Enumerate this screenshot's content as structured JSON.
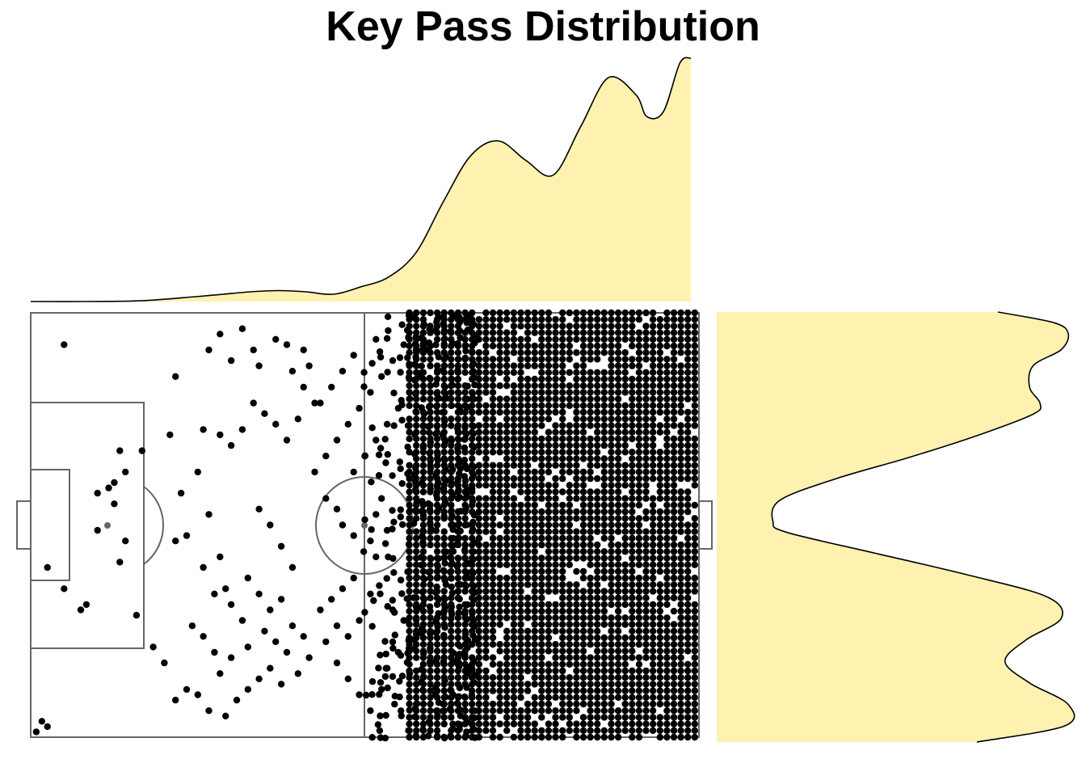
{
  "title": "Key Pass Distribution",
  "colors": {
    "density_fill": "#FFF2B0",
    "density_line": "#000000",
    "pitch_line": "#666666",
    "point": "#000000"
  },
  "chart_data": {
    "type": "scatter",
    "title": "Key Pass Distribution",
    "xlabel": "",
    "ylabel": "",
    "xlim": [
      0,
      120
    ],
    "ylim": [
      0,
      80
    ],
    "axes_visible": false,
    "grid": false,
    "legend": "none",
    "background": "football pitch (half-pitch markings, centre circle, penalty box, goal)",
    "marginal_x_density": {
      "x": [
        0,
        10,
        20,
        30,
        35,
        40,
        45,
        50,
        55,
        60,
        65,
        70,
        75,
        80,
        85,
        90,
        95,
        100,
        105,
        110,
        112,
        115,
        118,
        120
      ],
      "density": [
        0.0,
        0.0,
        0.003,
        0.02,
        0.03,
        0.04,
        0.045,
        0.04,
        0.03,
        0.06,
        0.1,
        0.2,
        0.41,
        0.6,
        0.66,
        0.58,
        0.52,
        0.72,
        0.92,
        0.85,
        0.76,
        0.78,
        0.98,
        1.0
      ]
    },
    "marginal_y_density": {
      "y": [
        0,
        3,
        7,
        11,
        15,
        19,
        23,
        27,
        31,
        35,
        39,
        41,
        45,
        49,
        53,
        57,
        61,
        63,
        66,
        70,
        73,
        76,
        78,
        80
      ],
      "density": [
        0.74,
        0.99,
        1.0,
        0.89,
        0.82,
        0.88,
        0.98,
        0.94,
        0.72,
        0.46,
        0.2,
        0.16,
        0.18,
        0.34,
        0.55,
        0.74,
        0.9,
        0.92,
        0.89,
        0.9,
        0.98,
        1.0,
        0.96,
        0.8
      ]
    },
    "points": {
      "description": "key pass origin locations",
      "sparse": [
        [
          6,
          74
        ],
        [
          26,
          68
        ],
        [
          25,
          57
        ],
        [
          16,
          54
        ],
        [
          20,
          54
        ],
        [
          17,
          50
        ],
        [
          15,
          48
        ],
        [
          14,
          47
        ],
        [
          12,
          46
        ],
        [
          15,
          44
        ],
        [
          12,
          39
        ],
        [
          16,
          33
        ],
        [
          17,
          37
        ],
        [
          10,
          25
        ],
        [
          3,
          32
        ],
        [
          6,
          28
        ],
        [
          9,
          24
        ],
        [
          1,
          1
        ],
        [
          2,
          3
        ],
        [
          3,
          2
        ],
        [
          32,
          73
        ],
        [
          34,
          76
        ],
        [
          36,
          71
        ],
        [
          38,
          77
        ],
        [
          40,
          73
        ],
        [
          41,
          70
        ],
        [
          44,
          75
        ],
        [
          46,
          74
        ],
        [
          47,
          69
        ],
        [
          49,
          73
        ],
        [
          50,
          70
        ],
        [
          51,
          63
        ],
        [
          49,
          66
        ],
        [
          48,
          60
        ],
        [
          46,
          56
        ],
        [
          44,
          59
        ],
        [
          42,
          61
        ],
        [
          40,
          63
        ],
        [
          38,
          58
        ],
        [
          36,
          55
        ],
        [
          34,
          57
        ],
        [
          31,
          58
        ],
        [
          30,
          50
        ],
        [
          27,
          46
        ],
        [
          26,
          37
        ],
        [
          28,
          38
        ],
        [
          31,
          32
        ],
        [
          32,
          42
        ],
        [
          34,
          34
        ],
        [
          35,
          28
        ],
        [
          33,
          27
        ],
        [
          36,
          25
        ],
        [
          38,
          22
        ],
        [
          39,
          30
        ],
        [
          41,
          27
        ],
        [
          43,
          24
        ],
        [
          45,
          26
        ],
        [
          47,
          21
        ],
        [
          49,
          19
        ],
        [
          50,
          15
        ],
        [
          48,
          12
        ],
        [
          45,
          10
        ],
        [
          43,
          13
        ],
        [
          41,
          11
        ],
        [
          39,
          9
        ],
        [
          37,
          7
        ],
        [
          35,
          4
        ],
        [
          32,
          5
        ],
        [
          30,
          8
        ],
        [
          28,
          9
        ],
        [
          26,
          7
        ],
        [
          24,
          14
        ],
        [
          22,
          17
        ],
        [
          19,
          23
        ],
        [
          29,
          21
        ],
        [
          31,
          19
        ],
        [
          33,
          16
        ],
        [
          34,
          12
        ],
        [
          36,
          15
        ],
        [
          39,
          17
        ],
        [
          42,
          20
        ],
        [
          44,
          18
        ],
        [
          46,
          16
        ],
        [
          47,
          32
        ],
        [
          45,
          36
        ],
        [
          43,
          40
        ],
        [
          41,
          43
        ],
        [
          53,
          45
        ],
        [
          55,
          43
        ],
        [
          56,
          40
        ],
        [
          58,
          38
        ],
        [
          60,
          41
        ],
        [
          61,
          37
        ],
        [
          62,
          42
        ],
        [
          63,
          45
        ],
        [
          64,
          39
        ],
        [
          62,
          34
        ],
        [
          58,
          30
        ],
        [
          56,
          28
        ],
        [
          54,
          26
        ],
        [
          53,
          18
        ],
        [
          55,
          14
        ],
        [
          57,
          11
        ],
        [
          59,
          8
        ],
        [
          61,
          5
        ],
        [
          63,
          9
        ],
        [
          64,
          13
        ],
        [
          66,
          16
        ],
        [
          67,
          22
        ],
        [
          65,
          24
        ],
        [
          61,
          27
        ],
        [
          59,
          22
        ],
        [
          57,
          19
        ],
        [
          55,
          21
        ],
        [
          52,
          24
        ],
        [
          51,
          50
        ],
        [
          53,
          53
        ],
        [
          55,
          56
        ],
        [
          57,
          59
        ],
        [
          59,
          62
        ],
        [
          61,
          65
        ],
        [
          63,
          68
        ],
        [
          65,
          71
        ],
        [
          67,
          74
        ],
        [
          62,
          75
        ],
        [
          58,
          72
        ],
        [
          56,
          69
        ],
        [
          54,
          66
        ],
        [
          52,
          63
        ],
        [
          58,
          50
        ],
        [
          60,
          53
        ],
        [
          62,
          56
        ],
        [
          64,
          59
        ],
        [
          66,
          62
        ],
        [
          68,
          65
        ],
        [
          70,
          68
        ]
      ],
      "dense_region": {
        "x_range": [
          68,
          120
        ],
        "y_range": [
          0,
          80
        ],
        "note": "near-continuous coverage of the attacking half; densest from x≈80 to x≈120"
      },
      "transition_region": {
        "x_range": [
          60,
          80
        ],
        "y_range": [
          0,
          80
        ],
        "note": "moderately dense"
      }
    }
  }
}
